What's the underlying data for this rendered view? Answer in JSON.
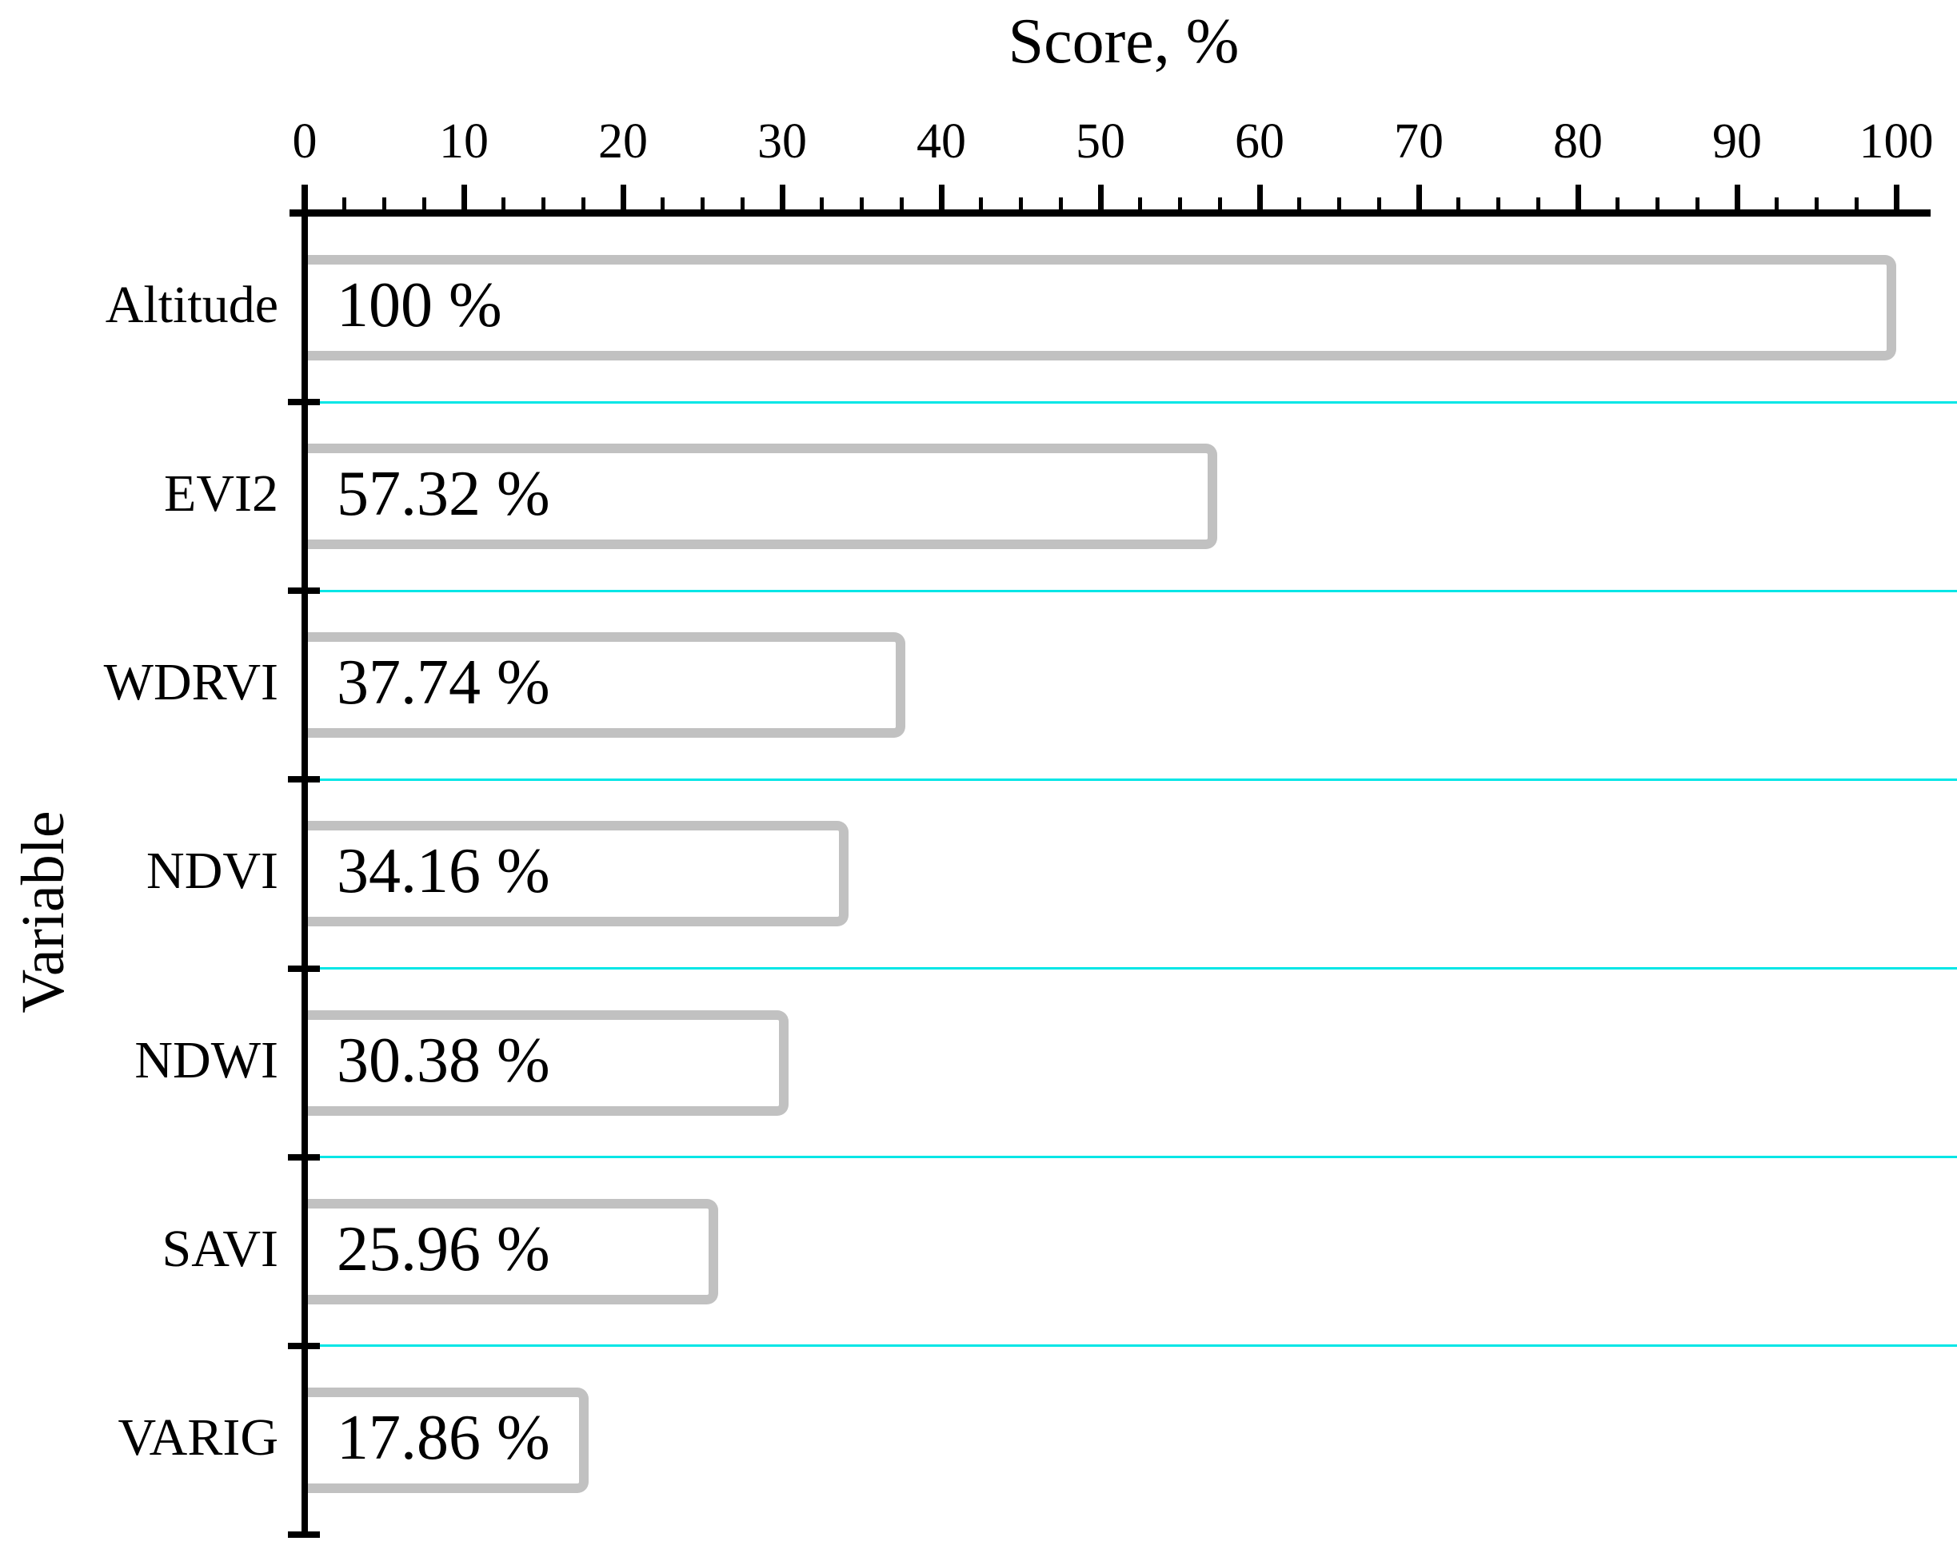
{
  "figure": {
    "title": "Score, %",
    "y_axis_label": "Variable"
  },
  "chart_data": {
    "type": "bar",
    "orientation": "horizontal",
    "title": "Score, %",
    "xlabel": "Score, %",
    "ylabel": "Variable",
    "categories": [
      "Altitude",
      "EVI2",
      "WDRVI",
      "NDVI",
      "NDWI",
      "SAVI",
      "VARIG"
    ],
    "values": [
      100,
      57.32,
      37.74,
      34.16,
      30.38,
      25.96,
      17.86
    ],
    "bar_labels": [
      "100 %",
      "57.32 %",
      "37.74 %",
      "34.16 %",
      "30.38 %",
      "25.96 %",
      "17.86 %"
    ],
    "xlim": [
      0,
      100
    ],
    "x_major_ticks": [
      0,
      10,
      20,
      30,
      40,
      50,
      60,
      70,
      80,
      90,
      100
    ],
    "x_minor_tick_step": 2.5,
    "legend_position": "none",
    "grid": "cyan horizontal separators between categories",
    "colors": {
      "background": "#FFFFFF",
      "bar_fill": "#FFFFFF",
      "bar_border": "#C1C1C1",
      "separator_line": "#00E6E6",
      "axis_line": "#000000",
      "text": "#000000"
    }
  }
}
